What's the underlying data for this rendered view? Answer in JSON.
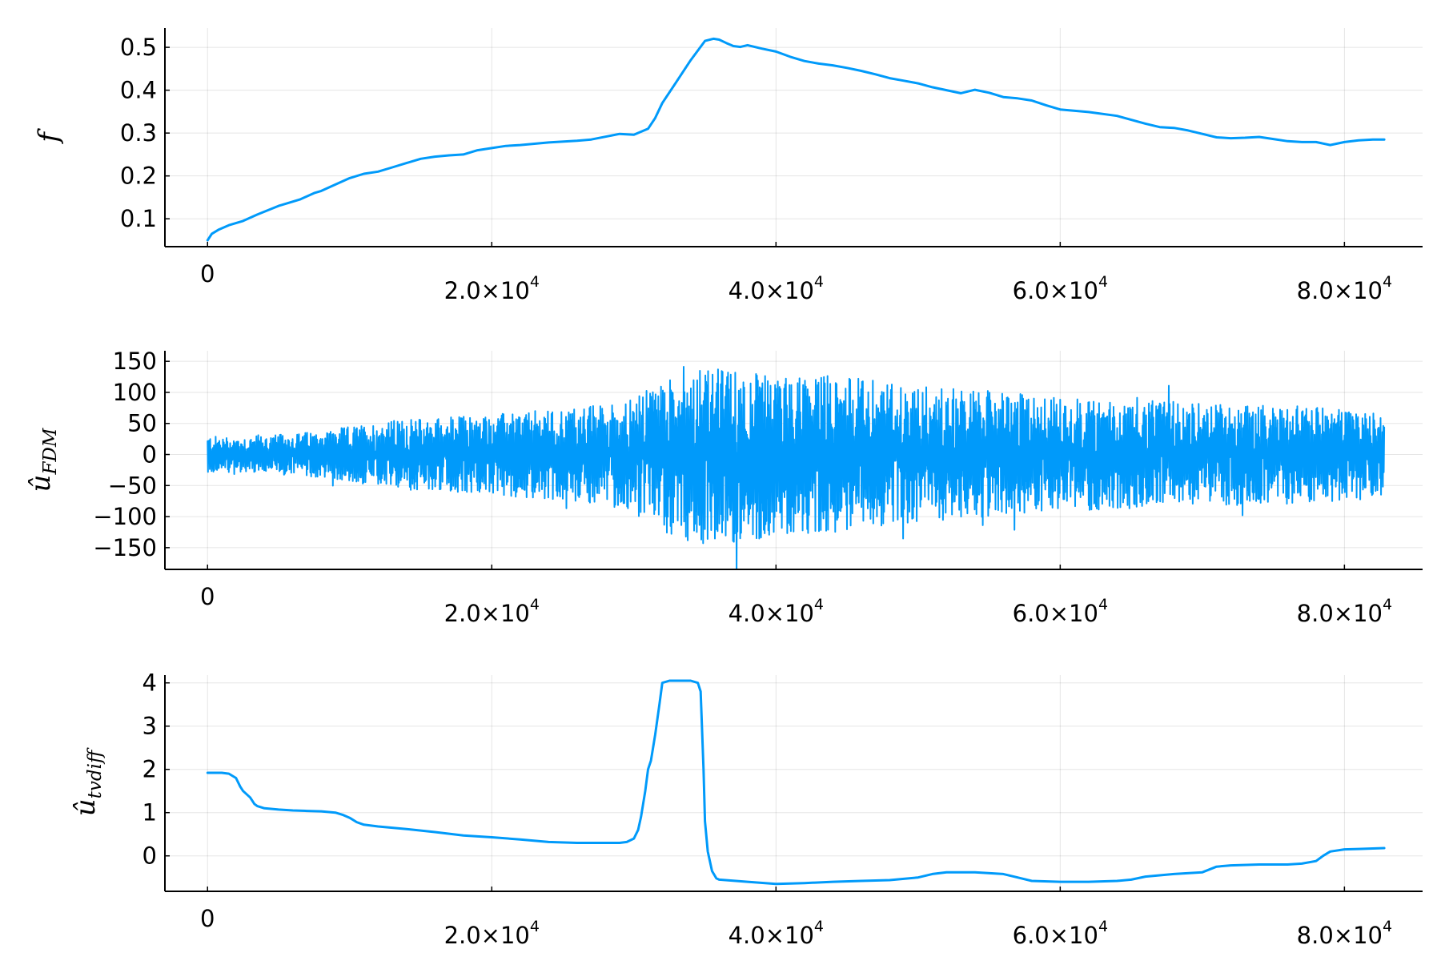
{
  "chart_data": [
    {
      "type": "line",
      "ylabel": "f",
      "xlim": [
        -3000,
        85500
      ],
      "ylim": [
        0.035,
        0.545
      ],
      "xticks": [
        {
          "value": 0,
          "mantissa": "0",
          "exp": ""
        },
        {
          "value": 20000,
          "mantissa": "2.0×10",
          "exp": "4"
        },
        {
          "value": 40000,
          "mantissa": "4.0×10",
          "exp": "4"
        },
        {
          "value": 60000,
          "mantissa": "6.0×10",
          "exp": "4"
        },
        {
          "value": 80000,
          "mantissa": "8.0×10",
          "exp": "4"
        }
      ],
      "yticks": [
        {
          "value": 0.1,
          "label": "0.1"
        },
        {
          "value": 0.2,
          "label": "0.2"
        },
        {
          "value": 0.3,
          "label": "0.3"
        },
        {
          "value": 0.4,
          "label": "0.4"
        },
        {
          "value": 0.5,
          "label": "0.5"
        }
      ],
      "grid": true,
      "legend": "none",
      "color": "#009AFA",
      "series": [
        {
          "x": [
            0,
            300,
            800,
            1500,
            2500,
            3500,
            5000,
            6500,
            7500,
            8000,
            9000,
            10000,
            11000,
            12000,
            13000,
            14000,
            15000,
            16000,
            17000,
            18000,
            19000,
            20000,
            21000,
            22000,
            24000,
            26000,
            27000,
            29000,
            30000,
            31000,
            31500,
            32000,
            33000,
            34000,
            35000,
            35600,
            36000,
            36500,
            37000,
            37500,
            38000,
            39000,
            40000,
            41000,
            42000,
            43000,
            44000,
            45000,
            46000,
            47000,
            48000,
            49000,
            50000,
            51000,
            52000,
            53000,
            54000,
            55000,
            56000,
            57000,
            58000,
            59000,
            60000,
            62000,
            64000,
            66000,
            67000,
            68000,
            69000,
            70000,
            71000,
            72000,
            73000,
            74000,
            75000,
            76000,
            77000,
            78000,
            79000,
            80000,
            81000,
            82000,
            82800
          ],
          "y": [
            0.05,
            0.065,
            0.075,
            0.085,
            0.095,
            0.11,
            0.13,
            0.145,
            0.16,
            0.165,
            0.18,
            0.195,
            0.205,
            0.21,
            0.22,
            0.23,
            0.24,
            0.245,
            0.248,
            0.25,
            0.26,
            0.265,
            0.27,
            0.272,
            0.278,
            0.282,
            0.285,
            0.298,
            0.296,
            0.31,
            0.335,
            0.37,
            0.42,
            0.47,
            0.515,
            0.52,
            0.518,
            0.51,
            0.503,
            0.501,
            0.505,
            0.497,
            0.49,
            0.478,
            0.468,
            0.462,
            0.458,
            0.452,
            0.445,
            0.437,
            0.428,
            0.422,
            0.416,
            0.407,
            0.4,
            0.393,
            0.401,
            0.394,
            0.384,
            0.381,
            0.376,
            0.365,
            0.355,
            0.349,
            0.34,
            0.322,
            0.314,
            0.312,
            0.306,
            0.298,
            0.29,
            0.288,
            0.289,
            0.291,
            0.286,
            0.281,
            0.279,
            0.279,
            0.272,
            0.279,
            0.283,
            0.285,
            0.285
          ]
        }
      ]
    },
    {
      "type": "line",
      "ylabel": "û",
      "ylabel_sub": "FDM",
      "xlim": [
        -3000,
        85500
      ],
      "ylim": [
        -185,
        167
      ],
      "xticks": [
        {
          "value": 0,
          "mantissa": "0",
          "exp": ""
        },
        {
          "value": 20000,
          "mantissa": "2.0×10",
          "exp": "4"
        },
        {
          "value": 40000,
          "mantissa": "4.0×10",
          "exp": "4"
        },
        {
          "value": 60000,
          "mantissa": "6.0×10",
          "exp": "4"
        },
        {
          "value": 80000,
          "mantissa": "8.0×10",
          "exp": "4"
        }
      ],
      "yticks": [
        {
          "value": -150,
          "label": "−150"
        },
        {
          "value": -100,
          "label": "−100"
        },
        {
          "value": -50,
          "label": "−50"
        },
        {
          "value": 0,
          "label": "0"
        },
        {
          "value": 50,
          "label": "50"
        },
        {
          "value": 100,
          "label": "100"
        },
        {
          "value": 150,
          "label": "150"
        }
      ],
      "grid": true,
      "legend": "none",
      "color": "#009AFA",
      "envelope": {
        "x": [
          0,
          2000,
          5000,
          8000,
          10000,
          13000,
          16000,
          20000,
          24000,
          28000,
          30000,
          32000,
          35000,
          38000,
          40000,
          44000,
          48000,
          52000,
          56000,
          60000,
          64000,
          68000,
          72000,
          76000,
          80000,
          82800
        ],
        "upper": [
          30,
          28,
          32,
          38,
          45,
          55,
          60,
          65,
          72,
          82,
          90,
          120,
          140,
          135,
          125,
          130,
          118,
          110,
          100,
          92,
          88,
          85,
          82,
          80,
          75,
          68
        ],
        "lower": [
          -30,
          -28,
          -32,
          -38,
          -45,
          -55,
          -60,
          -65,
          -72,
          -82,
          -95,
          -125,
          -150,
          -140,
          -130,
          -125,
          -115,
          -105,
          -98,
          -92,
          -88,
          -85,
          -82,
          -80,
          -75,
          -70
        ]
      }
    },
    {
      "type": "line",
      "ylabel": "û",
      "ylabel_sub": "tvdiff",
      "xlim": [
        -3000,
        85500
      ],
      "ylim": [
        -0.82,
        4.18
      ],
      "xticks": [
        {
          "value": 0,
          "mantissa": "0",
          "exp": ""
        },
        {
          "value": 20000,
          "mantissa": "2.0×10",
          "exp": "4"
        },
        {
          "value": 40000,
          "mantissa": "4.0×10",
          "exp": "4"
        },
        {
          "value": 60000,
          "mantissa": "6.0×10",
          "exp": "4"
        },
        {
          "value": 80000,
          "mantissa": "8.0×10",
          "exp": "4"
        }
      ],
      "yticks": [
        {
          "value": 0,
          "label": "0"
        },
        {
          "value": 1,
          "label": "1"
        },
        {
          "value": 2,
          "label": "2"
        },
        {
          "value": 3,
          "label": "3"
        },
        {
          "value": 4,
          "label": "4"
        }
      ],
      "grid": true,
      "legend": "none",
      "color": "#009AFA",
      "series": [
        {
          "x": [
            0,
            1000,
            1500,
            2000,
            2300,
            2500,
            3000,
            3300,
            3500,
            4000,
            5000,
            6000,
            7000,
            8000,
            9000,
            9500,
            10000,
            10500,
            11000,
            12000,
            14000,
            16000,
            18000,
            20000,
            22000,
            24000,
            26000,
            28000,
            29000,
            29500,
            30000,
            30300,
            30500,
            30800,
            31000,
            31200,
            31500,
            31800,
            32000,
            32500,
            33000,
            33500,
            34000,
            34500,
            34700,
            34900,
            35000,
            35200,
            35500,
            35800,
            36000,
            38000,
            40000,
            42000,
            44000,
            46000,
            48000,
            50000,
            51000,
            52000,
            54000,
            56000,
            57000,
            58000,
            60000,
            62000,
            64000,
            65000,
            66000,
            68000,
            70000,
            71000,
            72000,
            74000,
            76000,
            77000,
            78000,
            78500,
            79000,
            80000,
            81000,
            82800
          ],
          "y": [
            1.92,
            1.92,
            1.9,
            1.8,
            1.6,
            1.5,
            1.35,
            1.2,
            1.15,
            1.1,
            1.07,
            1.05,
            1.04,
            1.03,
            1.0,
            0.95,
            0.88,
            0.78,
            0.72,
            0.68,
            0.62,
            0.55,
            0.47,
            0.43,
            0.38,
            0.32,
            0.3,
            0.3,
            0.3,
            0.32,
            0.4,
            0.6,
            0.9,
            1.5,
            2.0,
            2.2,
            2.8,
            3.5,
            4.0,
            4.05,
            4.05,
            4.05,
            4.05,
            4.0,
            3.8,
            2.0,
            0.8,
            0.1,
            -0.35,
            -0.52,
            -0.55,
            -0.6,
            -0.65,
            -0.63,
            -0.6,
            -0.58,
            -0.56,
            -0.5,
            -0.42,
            -0.38,
            -0.38,
            -0.42,
            -0.5,
            -0.58,
            -0.6,
            -0.6,
            -0.58,
            -0.55,
            -0.48,
            -0.42,
            -0.38,
            -0.25,
            -0.22,
            -0.2,
            -0.2,
            -0.18,
            -0.12,
            0.0,
            0.1,
            0.15,
            0.16,
            0.18
          ]
        }
      ]
    }
  ]
}
